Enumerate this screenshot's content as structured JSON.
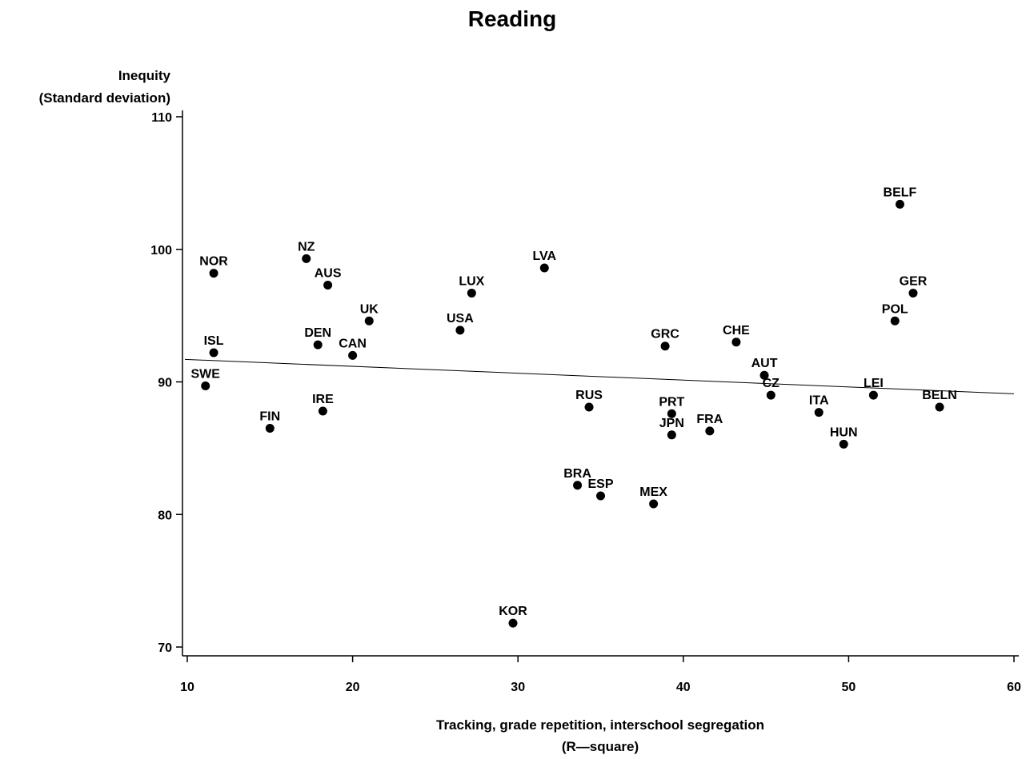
{
  "chart_data": {
    "type": "scatter",
    "title": "Reading",
    "ylabel_line1": "Inequity",
    "ylabel_line2": "(Standard deviation)",
    "xlabel_line1": "Tracking, grade repetition, interschool segregation",
    "xlabel_line2": "(R—square)",
    "xlim": [
      10,
      60
    ],
    "ylim": [
      70,
      110
    ],
    "x_ticks": [
      10,
      20,
      30,
      40,
      50,
      60
    ],
    "y_ticks": [
      70,
      80,
      90,
      100,
      110
    ],
    "grid": false,
    "trendline": {
      "x": [
        10,
        60
      ],
      "y": [
        91.7,
        89.1
      ]
    },
    "points": [
      {
        "label": "NOR",
        "x": 11.6,
        "y": 98.2
      },
      {
        "label": "NZ",
        "x": 17.2,
        "y": 99.3
      },
      {
        "label": "AUS",
        "x": 18.5,
        "y": 97.3
      },
      {
        "label": "ISL",
        "x": 11.6,
        "y": 92.2
      },
      {
        "label": "SWE",
        "x": 11.1,
        "y": 89.7
      },
      {
        "label": "DEN",
        "x": 17.9,
        "y": 92.8
      },
      {
        "label": "CAN",
        "x": 20.0,
        "y": 92.0
      },
      {
        "label": "UK",
        "x": 21.0,
        "y": 94.6
      },
      {
        "label": "FIN",
        "x": 15.0,
        "y": 86.5
      },
      {
        "label": "IRE",
        "x": 18.2,
        "y": 87.8
      },
      {
        "label": "USA",
        "x": 26.5,
        "y": 93.9
      },
      {
        "label": "LUX",
        "x": 27.2,
        "y": 96.7
      },
      {
        "label": "LVA",
        "x": 31.6,
        "y": 98.6
      },
      {
        "label": "KOR",
        "x": 29.7,
        "y": 71.8
      },
      {
        "label": "BRA",
        "x": 33.6,
        "y": 82.2
      },
      {
        "label": "ESP",
        "x": 35.0,
        "y": 81.4
      },
      {
        "label": "RUS",
        "x": 34.3,
        "y": 88.1
      },
      {
        "label": "MEX",
        "x": 38.2,
        "y": 80.8
      },
      {
        "label": "GRC",
        "x": 38.9,
        "y": 92.7
      },
      {
        "label": "PRT",
        "x": 39.3,
        "y": 87.6
      },
      {
        "label": "JPN",
        "x": 39.3,
        "y": 86.0
      },
      {
        "label": "FRA",
        "x": 41.6,
        "y": 86.3
      },
      {
        "label": "CHE",
        "x": 43.2,
        "y": 93.0
      },
      {
        "label": "AUT",
        "x": 44.9,
        "y": 90.5
      },
      {
        "label": "CZ",
        "x": 45.3,
        "y": 89.0
      },
      {
        "label": "ITA",
        "x": 48.2,
        "y": 87.7
      },
      {
        "label": "HUN",
        "x": 49.7,
        "y": 85.3
      },
      {
        "label": "LEI",
        "x": 51.5,
        "y": 89.0
      },
      {
        "label": "BELF",
        "x": 53.1,
        "y": 103.4
      },
      {
        "label": "GER",
        "x": 53.9,
        "y": 96.7
      },
      {
        "label": "POL",
        "x": 52.8,
        "y": 94.6
      },
      {
        "label": "BELN",
        "x": 55.5,
        "y": 88.1
      }
    ]
  }
}
